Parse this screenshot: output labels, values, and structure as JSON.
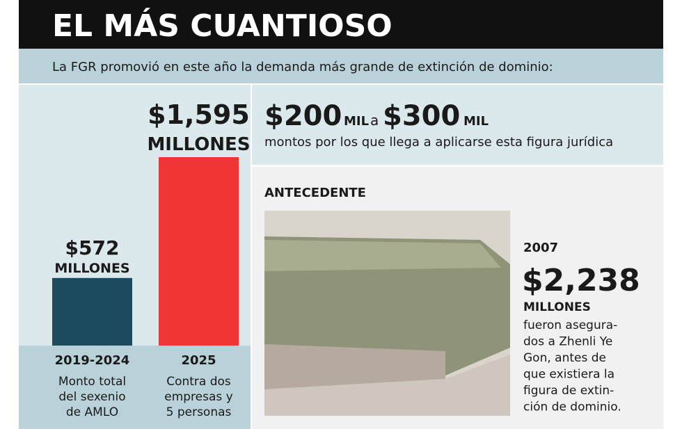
{
  "header": {
    "title": "EL MÁS CUANTIOSO",
    "subtitle": "La FGR promovió en este año la demanda más grande de extinción de dominio:"
  },
  "chart_data": {
    "type": "bar",
    "categories": [
      "2019-2024",
      "2025"
    ],
    "values": [
      572,
      1595
    ],
    "value_labels": [
      "$572",
      "$1,595"
    ],
    "value_label_unit": "MILLONES",
    "colors": [
      "#1c4a5e",
      "#ef3535"
    ],
    "category_notes": [
      [
        "Monto total",
        "del sexenio",
        "de AMLO"
      ],
      [
        "Contra dos",
        "empresas y",
        "5 personas"
      ]
    ]
  },
  "range": {
    "low": "$200",
    "low_unit": "MIL",
    "connector": "a",
    "high": "$300",
    "high_unit": "MIL",
    "description": "montos por los que llega a aplicarse esta figura jurídica"
  },
  "antecedent": {
    "heading": "ANTECEDENTE",
    "year": "2007",
    "amount": "$2,238",
    "unit": "MILLONES",
    "lines": [
      "fueron asegura-",
      "dos a Zhenli Ye",
      "Gon, antes de",
      "que existiera la",
      "figura de extin-",
      "ción de dominio."
    ]
  }
}
